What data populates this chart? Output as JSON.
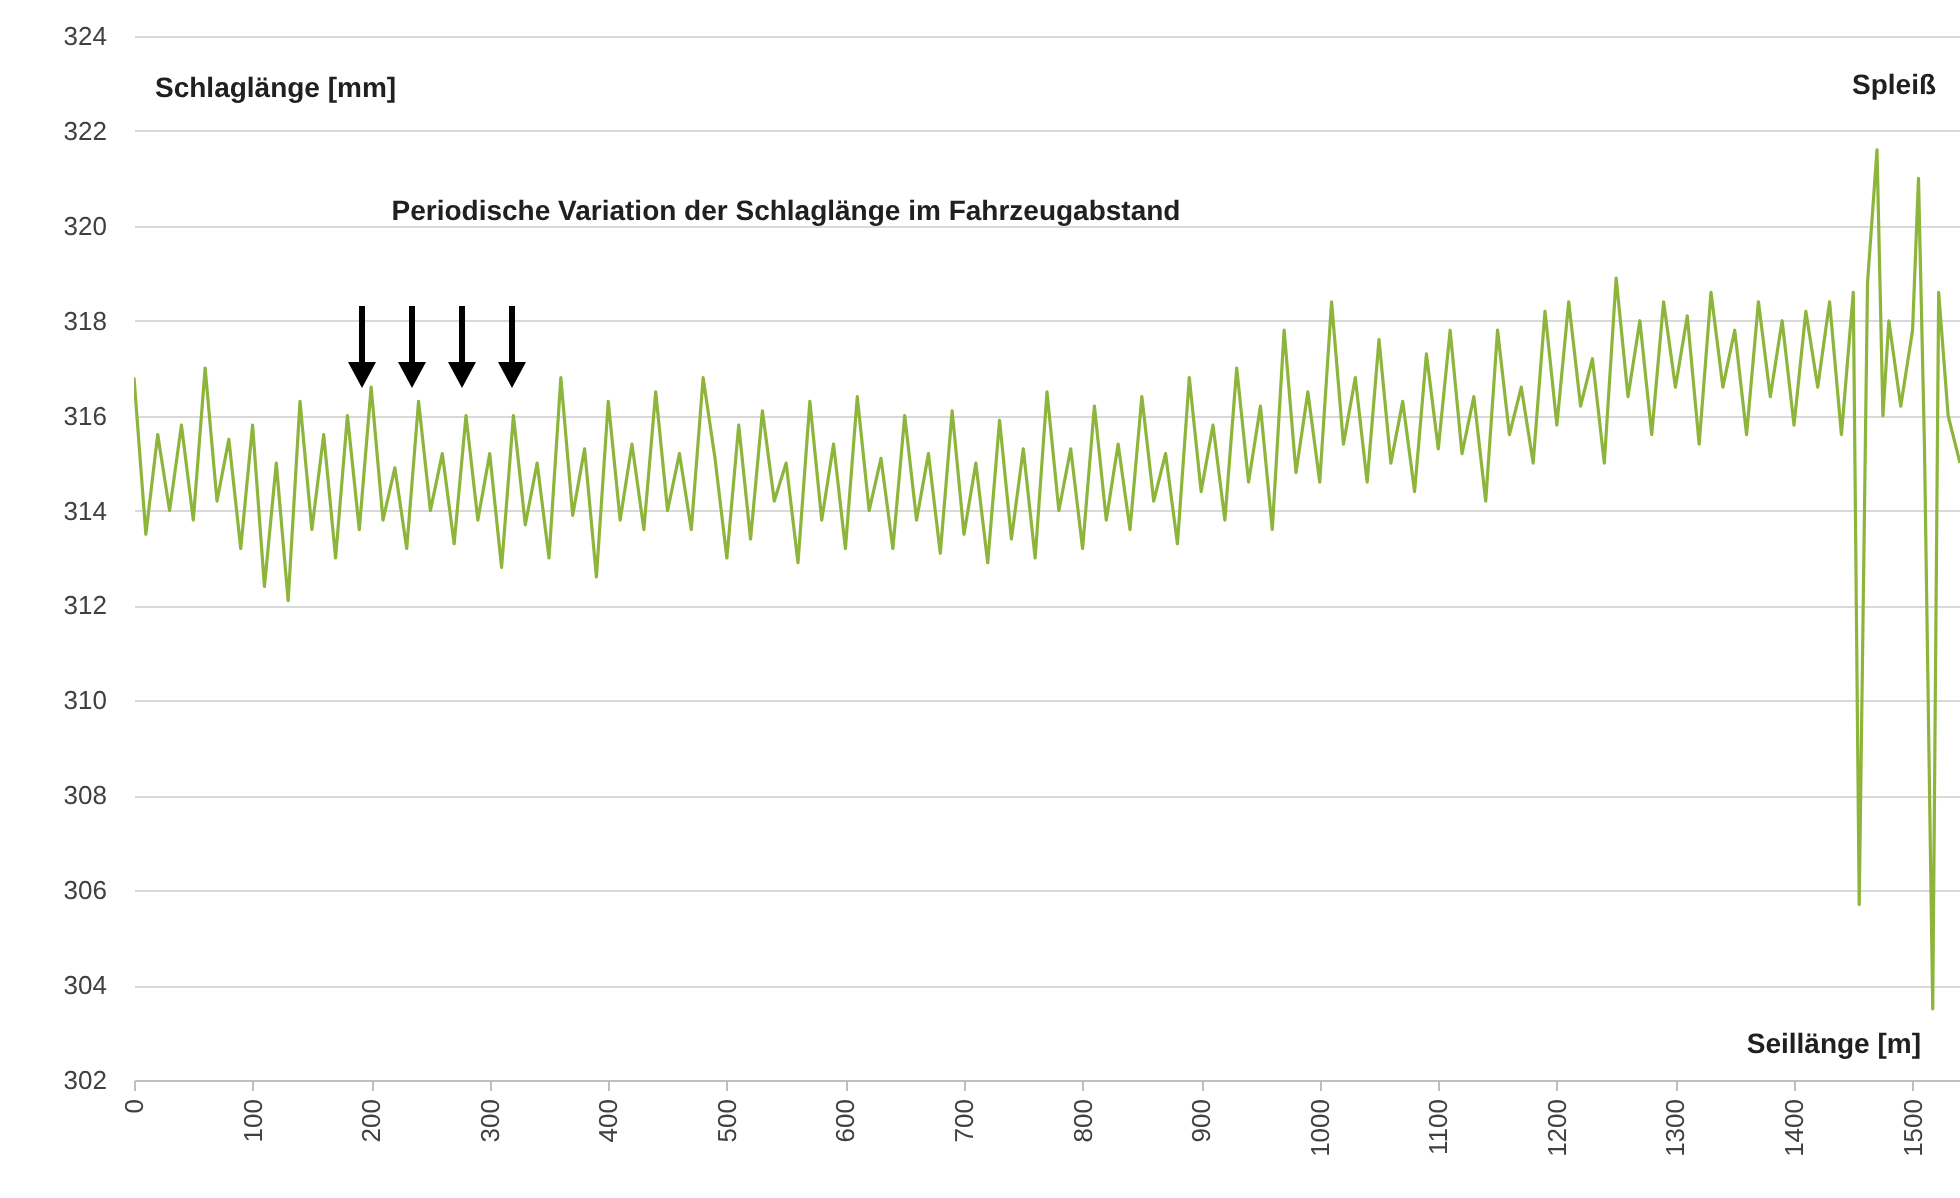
{
  "chart_data": {
    "type": "line",
    "xlabel": "Seillänge [m]",
    "ylabel": "Schlaglänge [mm]",
    "annotations": [
      "Spleiß",
      "Periodische Variation der Schlaglänge im Fahrzeugabstand"
    ],
    "xlim": [
      0,
      1540
    ],
    "xticks": [
      0,
      100,
      200,
      300,
      400,
      500,
      600,
      700,
      800,
      900,
      1000,
      1100,
      1200,
      1300,
      1400,
      1500
    ],
    "ylim": [
      302,
      324
    ],
    "yticks": [
      302,
      304,
      306,
      308,
      310,
      312,
      314,
      316,
      318,
      320,
      322,
      324
    ],
    "grid": "y",
    "marker": "none",
    "line_style": "solid",
    "series": [
      {
        "color": "#8db53c",
        "x": [
          0,
          10,
          20,
          30,
          40,
          50,
          60,
          70,
          80,
          90,
          100,
          110,
          120,
          130,
          140,
          150,
          160,
          170,
          180,
          190,
          200,
          210,
          220,
          230,
          240,
          250,
          260,
          270,
          280,
          290,
          300,
          310,
          320,
          330,
          340,
          350,
          360,
          370,
          380,
          390,
          400,
          410,
          420,
          430,
          440,
          450,
          460,
          470,
          480,
          490,
          500,
          510,
          520,
          530,
          540,
          550,
          560,
          570,
          580,
          590,
          600,
          610,
          620,
          630,
          640,
          650,
          660,
          670,
          680,
          690,
          700,
          710,
          720,
          730,
          740,
          750,
          760,
          770,
          780,
          790,
          800,
          810,
          820,
          830,
          840,
          850,
          860,
          870,
          880,
          890,
          900,
          910,
          920,
          930,
          940,
          950,
          960,
          970,
          980,
          990,
          1000,
          1010,
          1020,
          1030,
          1040,
          1050,
          1060,
          1070,
          1080,
          1090,
          1100,
          1110,
          1120,
          1130,
          1140,
          1150,
          1160,
          1170,
          1180,
          1190,
          1200,
          1210,
          1220,
          1230,
          1240,
          1250,
          1260,
          1270,
          1280,
          1290,
          1300,
          1310,
          1320,
          1330,
          1340,
          1350,
          1360,
          1370,
          1380,
          1390,
          1400,
          1410,
          1420,
          1430,
          1440,
          1450,
          1455,
          1462,
          1470,
          1475,
          1480,
          1490,
          1500,
          1505,
          1510,
          1517,
          1522,
          1530,
          1540
        ],
        "values": [
          316.8,
          313.5,
          315.6,
          314.0,
          315.8,
          313.8,
          317.0,
          314.2,
          315.5,
          313.2,
          315.8,
          312.4,
          315.0,
          312.1,
          316.3,
          313.6,
          315.6,
          313.0,
          316.0,
          313.6,
          316.6,
          313.8,
          314.9,
          313.2,
          316.3,
          314.0,
          315.2,
          313.3,
          316.0,
          313.8,
          315.2,
          312.8,
          316.0,
          313.7,
          315.0,
          313.0,
          316.8,
          313.9,
          315.3,
          312.6,
          316.3,
          313.8,
          315.4,
          313.6,
          316.5,
          314.0,
          315.2,
          313.6,
          316.8,
          315.1,
          313.0,
          315.8,
          313.4,
          316.1,
          314.2,
          315.0,
          312.9,
          316.3,
          313.8,
          315.4,
          313.2,
          316.4,
          314.0,
          315.1,
          313.2,
          316.0,
          313.8,
          315.2,
          313.1,
          316.1,
          313.5,
          315.0,
          312.9,
          315.9,
          313.4,
          315.3,
          313.0,
          316.5,
          314.0,
          315.3,
          313.2,
          316.2,
          313.8,
          315.4,
          313.6,
          316.4,
          314.2,
          315.2,
          313.3,
          316.8,
          314.4,
          315.8,
          313.8,
          317.0,
          314.6,
          316.2,
          313.6,
          317.8,
          314.8,
          316.5,
          314.6,
          318.4,
          315.4,
          316.8,
          314.6,
          317.6,
          315.0,
          316.3,
          314.4,
          317.3,
          315.3,
          317.8,
          315.2,
          316.4,
          314.2,
          317.8,
          315.6,
          316.6,
          315.0,
          318.2,
          315.8,
          318.4,
          316.2,
          317.2,
          315.0,
          318.9,
          316.4,
          318.0,
          315.6,
          318.4,
          316.6,
          318.1,
          315.4,
          318.6,
          316.6,
          317.8,
          315.6,
          318.4,
          316.4,
          318.0,
          315.8,
          318.2,
          316.6,
          318.4,
          315.6,
          318.6,
          305.7,
          318.8,
          321.6,
          316.0,
          318.0,
          316.2,
          317.8,
          321.0,
          315.4,
          303.5,
          318.6,
          316.0,
          315.0
        ]
      }
    ]
  }
}
